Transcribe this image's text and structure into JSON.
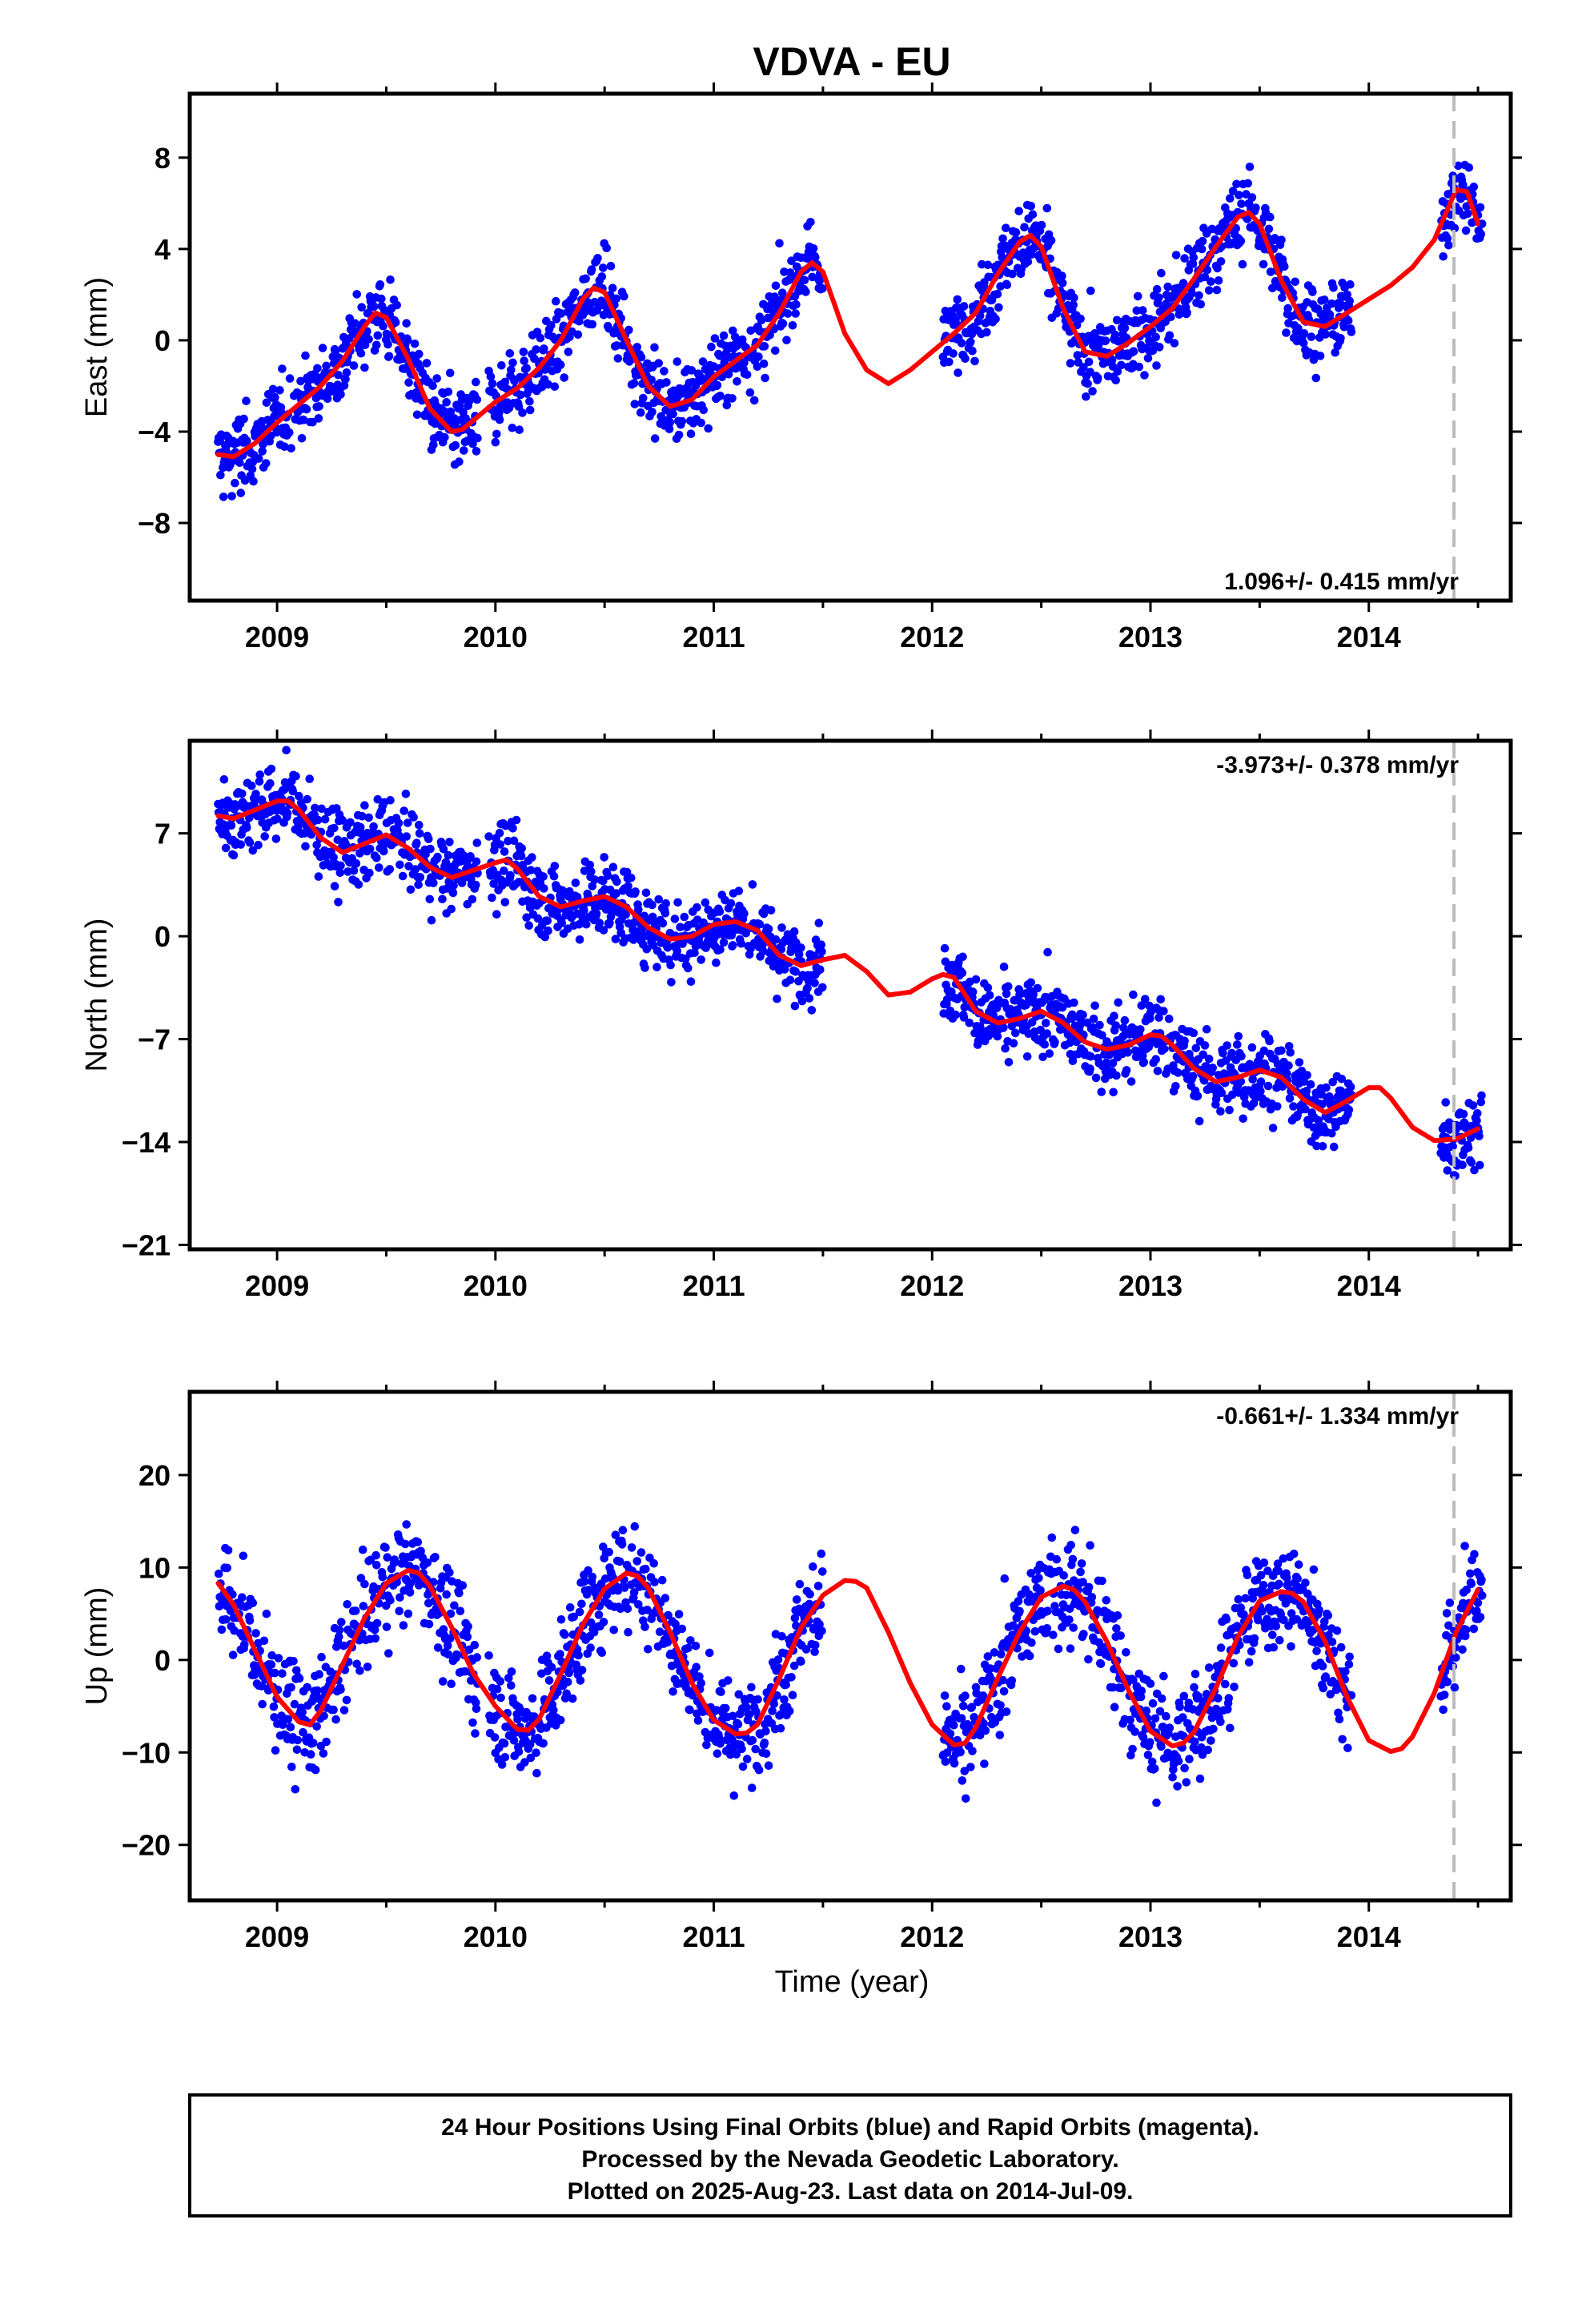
{
  "title": "VDVA - EU",
  "xlabel": "Time (year)",
  "note": {
    "lines": [
      "24 Hour Positions Using Final Orbits (blue) and Rapid Orbits (magenta).",
      "Processed by the Nevada Geodetic Laboratory.",
      "Plotted on 2025-Aug-23. Last data on 2014-Jul-09."
    ]
  },
  "colors": {
    "data_points": "#0000ff",
    "model_fit": "#ff0000",
    "marker_line": "#bbbbbb",
    "frame": "#000000"
  },
  "chart_data": [
    {
      "type": "scatter",
      "component": "east",
      "ylabel": "East (mm)",
      "rate_text": "1.096+/- 0.415 mm/yr",
      "xlim": [
        2008.6,
        2014.65
      ],
      "ylim": [
        -11.4,
        10.8
      ],
      "x_ticks": [
        2009,
        2010,
        2011,
        2012,
        2013,
        2014
      ],
      "y_ticks": [
        -8,
        -4,
        0,
        4,
        8
      ],
      "y_tick_labels": [
        "−8",
        "−4",
        "0",
        "4",
        "8"
      ],
      "marker_line_x": 2014.39,
      "data_coverage": [
        [
          2008.73,
          2009.92
        ],
        [
          2009.97,
          2011.5
        ],
        [
          2012.05,
          2013.92
        ],
        [
          2014.33,
          2014.52
        ]
      ],
      "model_fit": {
        "x": [
          2008.73,
          2008.8,
          2008.9,
          2009.0,
          2009.1,
          2009.2,
          2009.3,
          2009.4,
          2009.45,
          2009.5,
          2009.6,
          2009.7,
          2009.8,
          2009.85,
          2009.9,
          2010.0,
          2010.1,
          2010.2,
          2010.3,
          2010.4,
          2010.45,
          2010.5,
          2010.6,
          2010.7,
          2010.8,
          2010.9,
          2011.0,
          2011.1,
          2011.2,
          2011.3,
          2011.4,
          2011.45,
          2011.5,
          2011.6,
          2011.7,
          2011.8,
          2011.9,
          2012.0,
          2012.1,
          2012.2,
          2012.3,
          2012.4,
          2012.45,
          2012.5,
          2012.6,
          2012.7,
          2012.8,
          2012.9,
          2013.0,
          2013.1,
          2013.2,
          2013.3,
          2013.4,
          2013.45,
          2013.5,
          2013.6,
          2013.7,
          2013.8,
          2013.9,
          2014.0,
          2014.1,
          2014.2,
          2014.3,
          2014.4,
          2014.45,
          2014.5
        ],
        "y": [
          -5.0,
          -5.1,
          -4.5,
          -3.6,
          -2.8,
          -2.0,
          -0.9,
          0.6,
          1.2,
          1.0,
          -0.8,
          -3.0,
          -4.0,
          -3.9,
          -3.5,
          -2.7,
          -2.1,
          -1.2,
          0.0,
          1.8,
          2.3,
          2.1,
          0.0,
          -2.0,
          -2.9,
          -2.6,
          -1.6,
          -0.9,
          -0.2,
          1.2,
          3.0,
          3.4,
          3.0,
          0.3,
          -1.3,
          -1.9,
          -1.3,
          -0.5,
          0.3,
          1.2,
          2.9,
          4.3,
          4.6,
          4.1,
          1.4,
          -0.5,
          -0.7,
          -0.1,
          0.6,
          1.4,
          2.7,
          4.1,
          5.4,
          5.6,
          5.1,
          2.6,
          0.8,
          0.6,
          1.2,
          1.8,
          2.4,
          3.2,
          4.4,
          6.6,
          6.5,
          5.1
        ]
      }
    },
    {
      "type": "scatter",
      "component": "north",
      "ylabel": "North (mm)",
      "rate_text": "-3.973+/- 0.378 mm/yr",
      "xlim": [
        2008.6,
        2014.65
      ],
      "ylim": [
        -21.3,
        13.3
      ],
      "x_ticks": [
        2009,
        2010,
        2011,
        2012,
        2013,
        2014
      ],
      "y_ticks": [
        -21,
        -14,
        -7,
        0,
        7
      ],
      "y_tick_labels": [
        "−21",
        "−14",
        "−7",
        "0",
        "7"
      ],
      "marker_line_x": 2014.39,
      "data_coverage": [
        [
          2008.73,
          2009.92
        ],
        [
          2009.97,
          2011.5
        ],
        [
          2012.05,
          2013.92
        ],
        [
          2014.33,
          2014.52
        ]
      ],
      "model_fit": {
        "x": [
          2008.73,
          2008.8,
          2008.9,
          2009.0,
          2009.05,
          2009.1,
          2009.2,
          2009.3,
          2009.4,
          2009.5,
          2009.6,
          2009.7,
          2009.8,
          2009.9,
          2010.0,
          2010.05,
          2010.1,
          2010.2,
          2010.3,
          2010.4,
          2010.5,
          2010.6,
          2010.7,
          2010.8,
          2010.9,
          2011.0,
          2011.1,
          2011.2,
          2011.3,
          2011.4,
          2011.5,
          2011.6,
          2011.7,
          2011.8,
          2011.9,
          2012.0,
          2012.05,
          2012.1,
          2012.2,
          2012.3,
          2012.4,
          2012.5,
          2012.6,
          2012.7,
          2012.8,
          2012.9,
          2013.0,
          2013.05,
          2013.1,
          2013.2,
          2013.3,
          2013.4,
          2013.5,
          2013.6,
          2013.7,
          2013.8,
          2013.9,
          2014.0,
          2014.05,
          2014.1,
          2014.2,
          2014.3,
          2014.4,
          2014.5
        ],
        "y": [
          8.2,
          8.0,
          8.6,
          9.2,
          9.2,
          8.6,
          6.7,
          5.7,
          6.3,
          6.9,
          6.0,
          4.7,
          4.0,
          4.5,
          5.0,
          5.2,
          4.6,
          2.7,
          2.0,
          2.4,
          2.7,
          2.0,
          0.6,
          -0.2,
          0.0,
          0.8,
          1.0,
          0.4,
          -1.3,
          -2.0,
          -1.6,
          -1.3,
          -2.4,
          -4.0,
          -3.8,
          -2.9,
          -2.6,
          -2.8,
          -5.1,
          -5.9,
          -5.6,
          -5.1,
          -5.9,
          -7.2,
          -7.7,
          -7.4,
          -6.7,
          -6.8,
          -7.4,
          -9.0,
          -9.9,
          -9.6,
          -9.1,
          -9.6,
          -11.1,
          -12.0,
          -11.2,
          -10.3,
          -10.3,
          -11.0,
          -13.0,
          -13.9,
          -13.8,
          -13.1
        ]
      }
    },
    {
      "type": "scatter",
      "component": "up",
      "ylabel": "Up (mm)",
      "rate_text": "-0.661+/- 1.334 mm/yr",
      "xlim": [
        2008.6,
        2014.65
      ],
      "ylim": [
        -26,
        29
      ],
      "x_ticks": [
        2009,
        2010,
        2011,
        2012,
        2013,
        2014
      ],
      "y_ticks": [
        -20,
        -10,
        0,
        10,
        20
      ],
      "y_tick_labels": [
        "−20",
        "−10",
        "0",
        "10",
        "20"
      ],
      "marker_line_x": 2014.39,
      "data_coverage": [
        [
          2008.73,
          2009.92
        ],
        [
          2009.97,
          2011.5
        ],
        [
          2012.05,
          2013.92
        ],
        [
          2014.33,
          2014.52
        ]
      ],
      "model_fit": {
        "x": [
          2008.73,
          2008.8,
          2008.9,
          2009.0,
          2009.1,
          2009.15,
          2009.2,
          2009.3,
          2009.4,
          2009.5,
          2009.6,
          2009.65,
          2009.7,
          2009.8,
          2009.9,
          2010.0,
          2010.1,
          2010.15,
          2010.2,
          2010.3,
          2010.4,
          2010.5,
          2010.6,
          2010.65,
          2010.7,
          2010.8,
          2010.9,
          2011.0,
          2011.1,
          2011.15,
          2011.2,
          2011.3,
          2011.4,
          2011.5,
          2011.6,
          2011.65,
          2011.7,
          2011.8,
          2011.9,
          2012.0,
          2012.1,
          2012.15,
          2012.2,
          2012.3,
          2012.4,
          2012.5,
          2012.6,
          2012.65,
          2012.7,
          2012.8,
          2012.9,
          2013.0,
          2013.1,
          2013.15,
          2013.2,
          2013.3,
          2013.4,
          2013.5,
          2013.6,
          2013.65,
          2013.7,
          2013.8,
          2013.9,
          2014.0,
          2014.1,
          2014.15,
          2014.2,
          2014.3,
          2014.4,
          2014.5
        ],
        "y": [
          8.3,
          6.0,
          1.0,
          -4.0,
          -6.7,
          -7.0,
          -5.5,
          -0.5,
          4.5,
          8.3,
          9.7,
          9.4,
          8.0,
          3.5,
          -1.5,
          -5.0,
          -7.5,
          -7.6,
          -6.4,
          -1.5,
          3.8,
          7.7,
          9.4,
          9.1,
          7.8,
          3.0,
          -2.5,
          -6.5,
          -8.0,
          -7.9,
          -7.0,
          -2.0,
          3.5,
          7.0,
          8.6,
          8.5,
          7.8,
          3.0,
          -2.5,
          -7.0,
          -9.2,
          -9.0,
          -7.3,
          -2.0,
          3.0,
          6.8,
          8.0,
          7.6,
          6.3,
          2.0,
          -3.3,
          -7.7,
          -9.3,
          -9.0,
          -7.8,
          -3.0,
          2.5,
          6.4,
          7.4,
          7.2,
          6.3,
          2.0,
          -4.0,
          -8.7,
          -9.9,
          -9.6,
          -8.3,
          -3.6,
          3.0,
          7.6
        ]
      }
    }
  ]
}
